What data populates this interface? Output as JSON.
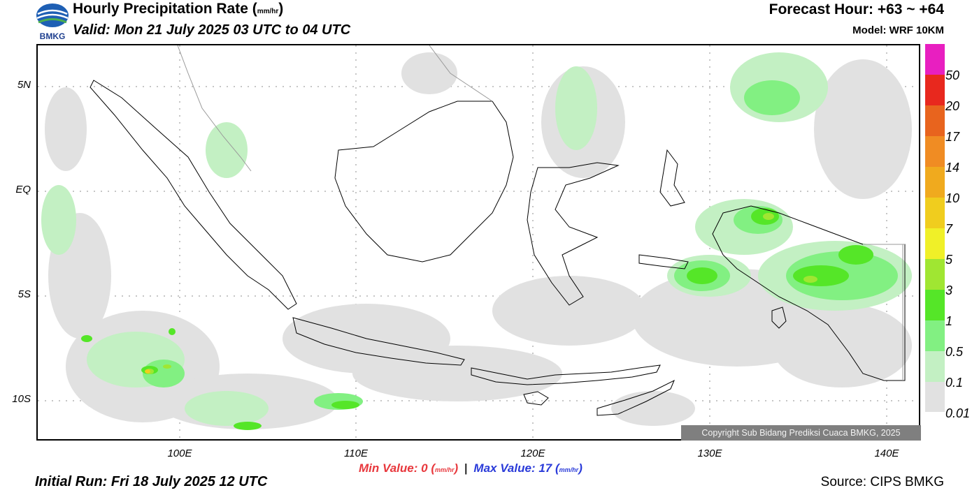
{
  "header": {
    "logo_text": "BMKG",
    "title": "Hourly Precipitation Rate (",
    "title_unit": "mm/hr",
    "title_close": ")",
    "valid": "Valid: Mon 21 July 2025 03 UTC to 04 UTC",
    "forecast_hour": "Forecast Hour: +63 ~ +64",
    "model": "Model: WRF 10KM"
  },
  "map": {
    "lat_labels": [
      "5N",
      "EQ",
      "5S",
      "10S"
    ],
    "lon_labels": [
      "100E",
      "110E",
      "120E",
      "130E",
      "140E"
    ],
    "copyright": "Copyright Sub Bidang Prediksi Cuaca BMKG, 2025",
    "background_color": "#ffffff",
    "coastline_color": "#000000",
    "border_color": "#9a9a9a"
  },
  "legend": {
    "levels": [
      "50",
      "20",
      "17",
      "14",
      "10",
      "7",
      "5",
      "3",
      "1",
      "0.5",
      "0.1",
      "0.01"
    ],
    "colors": [
      "#e81fc0",
      "#e8281e",
      "#e8641e",
      "#f08c23",
      "#f0aa1e",
      "#f0cd1e",
      "#f0f028",
      "#a0e632",
      "#55e628",
      "#82f082",
      "#c3f0c3",
      "#e1e1e1"
    ]
  },
  "footer": {
    "min_label": "Min Value:",
    "min_value": "0",
    "unit": "mm/hr",
    "separator": "|",
    "max_label": "Max Value:",
    "max_value": "17",
    "initial_run": "Initial Run: Fri 18 July 2025 12 UTC",
    "source": "Source: CIPS BMKG"
  }
}
